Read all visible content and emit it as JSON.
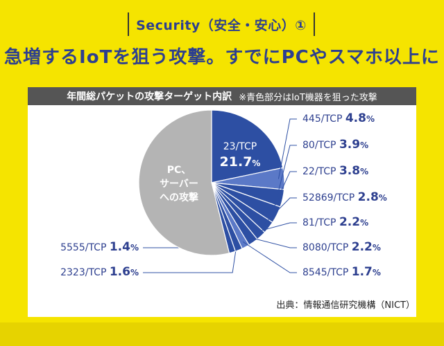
{
  "tag": "Security（安全・安心）①",
  "headline": "急増するIoTを狙う攻撃。すでにPCやスマホ以上に",
  "card": {
    "header_main": "年間総パケットの攻撃ターゲット内訳",
    "header_note": "※青色部分はIoT機器を狙った攻撃"
  },
  "source": "出典：情報通信研究機構（NICT）",
  "colors": {
    "background": "#f5e400",
    "accent_blue": "#2d4fa3",
    "gray_slice": "#b4b4b4",
    "navy_text": "#2d3f8f"
  },
  "chart_data": {
    "type": "pie",
    "slices": [
      {
        "label": "23/TCP",
        "value": 21.7,
        "color": "#2d4fa3"
      },
      {
        "label": "445/TCP",
        "value": 4.8,
        "color": "#5b79c7"
      },
      {
        "label": "80/TCP",
        "value": 3.9,
        "color": "#2d4fa3"
      },
      {
        "label": "22/TCP",
        "value": 3.8,
        "color": "#2d4fa3"
      },
      {
        "label": "52869/TCP",
        "value": 2.8,
        "color": "#2d4fa3"
      },
      {
        "label": "81/TCP",
        "value": 2.2,
        "color": "#2d4fa3"
      },
      {
        "label": "8080/TCP",
        "value": 2.2,
        "color": "#2d4fa3"
      },
      {
        "label": "8545/TCP",
        "value": 1.7,
        "color": "#5b79c7"
      },
      {
        "label": "2323/TCP",
        "value": 1.6,
        "color": "#2d4fa3"
      },
      {
        "label": "5555/TCP",
        "value": 1.4,
        "color": "#2d4fa3"
      },
      {
        "label": "PC、\nサーバー\nへの攻撃",
        "value": null,
        "color": "#b4b4b4"
      }
    ],
    "unit": "%"
  }
}
